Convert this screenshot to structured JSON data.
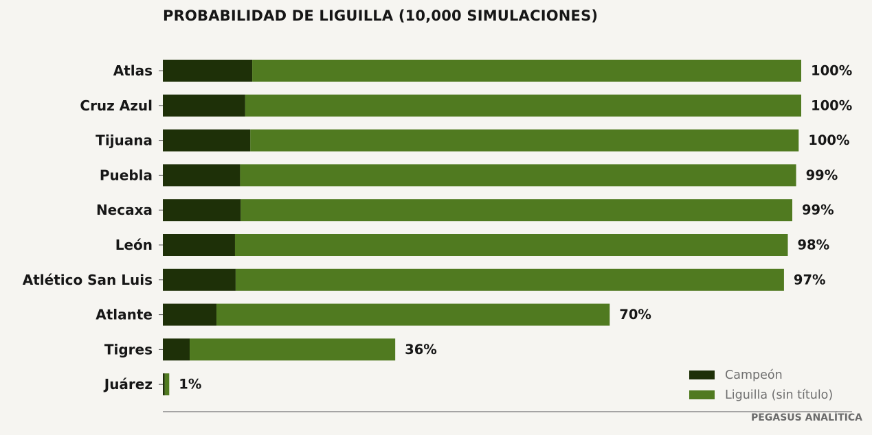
{
  "chart_data": {
    "type": "bar",
    "orientation": "horizontal",
    "stacked": true,
    "title": "PROBABILIDAD DE LIGUILLA (10,000 SIMULACIONES)",
    "categories": [
      "Atlas",
      "Cruz Azul",
      "Tijuana",
      "Puebla",
      "Necaxa",
      "León",
      "Atlético San Luis",
      "Atlante",
      "Tigres",
      "Juárez"
    ],
    "series": [
      {
        "name": "Campeón",
        "color": "#1e3008",
        "values": [
          14.0,
          12.9,
          13.7,
          12.1,
          12.2,
          11.3,
          11.4,
          8.4,
          4.2,
          0.3
        ]
      },
      {
        "name": "Liguilla (sin título)",
        "color": "#507a20",
        "values": [
          86.0,
          87.1,
          85.9,
          87.1,
          86.4,
          86.6,
          85.9,
          61.6,
          32.2,
          0.7
        ]
      }
    ],
    "data_labels": [
      "100%",
      "100%",
      "100%",
      "99%",
      "99%",
      "98%",
      "97%",
      "70%",
      "36%",
      "1%"
    ],
    "xlim": [
      0,
      100
    ],
    "grid": false,
    "legend_position": "bottom-right"
  },
  "credit": "PEGASUS ANALÍTICA"
}
